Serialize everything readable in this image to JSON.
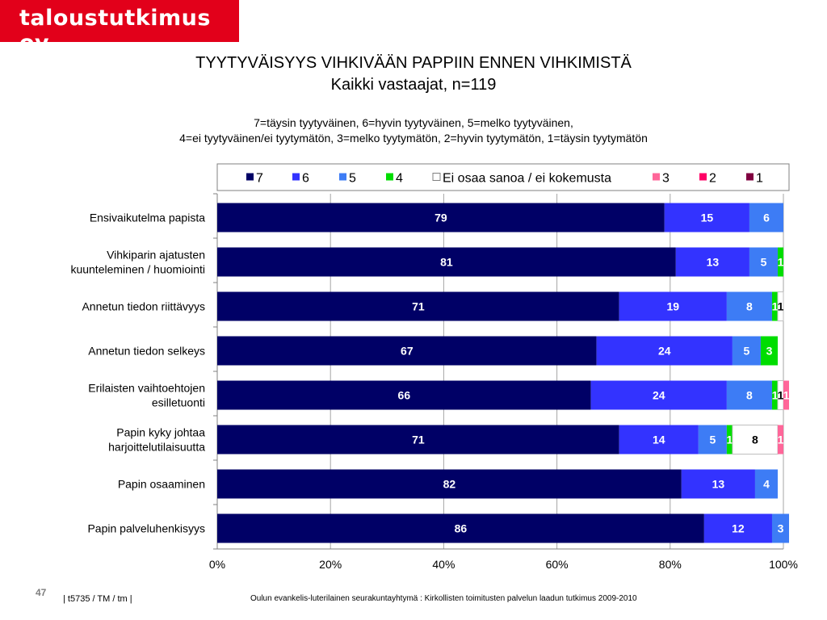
{
  "header": {
    "logo_text": "taloustutkimus oy"
  },
  "slide": {
    "title_line1": "TYYTYVÄISYYS VIHKIVÄÄN PAPPIIN ENNEN VIHKIMISTÄ",
    "title_line2": "Kaikki  vastaajat, n=119",
    "scale_line1": "7=täysin tyytyväinen, 6=hyvin tyytyväinen, 5=melko tyytyväinen,",
    "scale_line2": "4=ei tyytyväinen/ei tyytymätön, 3=melko tyytymätön, 2=hyvin tyytymätön, 1=täysin tyytymätön"
  },
  "footer": {
    "page_number": "47",
    "code": "|  t5735 / TM / tm |",
    "source": "Oulun evankelis-luterilainen seurakuntayhtymä : Kirkollisten toimitusten palvelun laadun tutkimus 2009-2010"
  },
  "chart_data": {
    "type": "bar",
    "orientation": "horizontal",
    "stacked": true,
    "percent_stacked": true,
    "legend_position": "top",
    "xlim": [
      0,
      100
    ],
    "x_ticks": [
      "0%",
      "20%",
      "40%",
      "60%",
      "80%",
      "100%"
    ],
    "categories": [
      [
        "Ensivaikutelma papista"
      ],
      [
        "Vihkiparin ajatusten",
        "kuunteleminen / huomiointi"
      ],
      [
        "Annetun tiedon riittävyys"
      ],
      [
        "Annetun tiedon selkeys"
      ],
      [
        "Erilaisten vaihtoehtojen",
        "esilletuonti"
      ],
      [
        "Papin kyky johtaa",
        "harjoittelutilaisuutta"
      ],
      [
        "Papin osaaminen"
      ],
      [
        "Papin palveluhenkisyys"
      ]
    ],
    "series": [
      {
        "name": "7",
        "color": "#000066",
        "label_color": "#ffffff",
        "values": [
          79,
          81,
          71,
          67,
          66,
          71,
          82,
          86
        ]
      },
      {
        "name": "6",
        "color": "#3333ff",
        "label_color": "#ffffff",
        "values": [
          15,
          13,
          19,
          24,
          24,
          14,
          13,
          12
        ]
      },
      {
        "name": "5",
        "color": "#3d7cf5",
        "label_color": "#ffffff",
        "values": [
          6,
          5,
          8,
          5,
          8,
          5,
          4,
          3
        ]
      },
      {
        "name": "4",
        "color": "#00dd00",
        "label_color": "#ffffff",
        "values": [
          0,
          1,
          1,
          3,
          1,
          1,
          0,
          0
        ]
      },
      {
        "name": "Ei osaa sanoa / ei kokemusta",
        "color": "#ffffff",
        "label_color": "#000000",
        "values": [
          0,
          0,
          1,
          0,
          1,
          8,
          0,
          0
        ]
      },
      {
        "name": "3",
        "color": "#ff6699",
        "label_color": "#ffffff",
        "values": [
          0,
          0,
          0,
          0,
          1,
          1,
          0,
          0
        ]
      },
      {
        "name": "2",
        "color": "#ff0066",
        "label_color": "#ffffff",
        "values": [
          0,
          0,
          0,
          0,
          0,
          0,
          0,
          0
        ]
      },
      {
        "name": "1",
        "color": "#800040",
        "label_color": "#ffffff",
        "values": [
          0,
          0,
          0,
          0,
          0,
          0,
          0,
          0
        ]
      }
    ]
  }
}
